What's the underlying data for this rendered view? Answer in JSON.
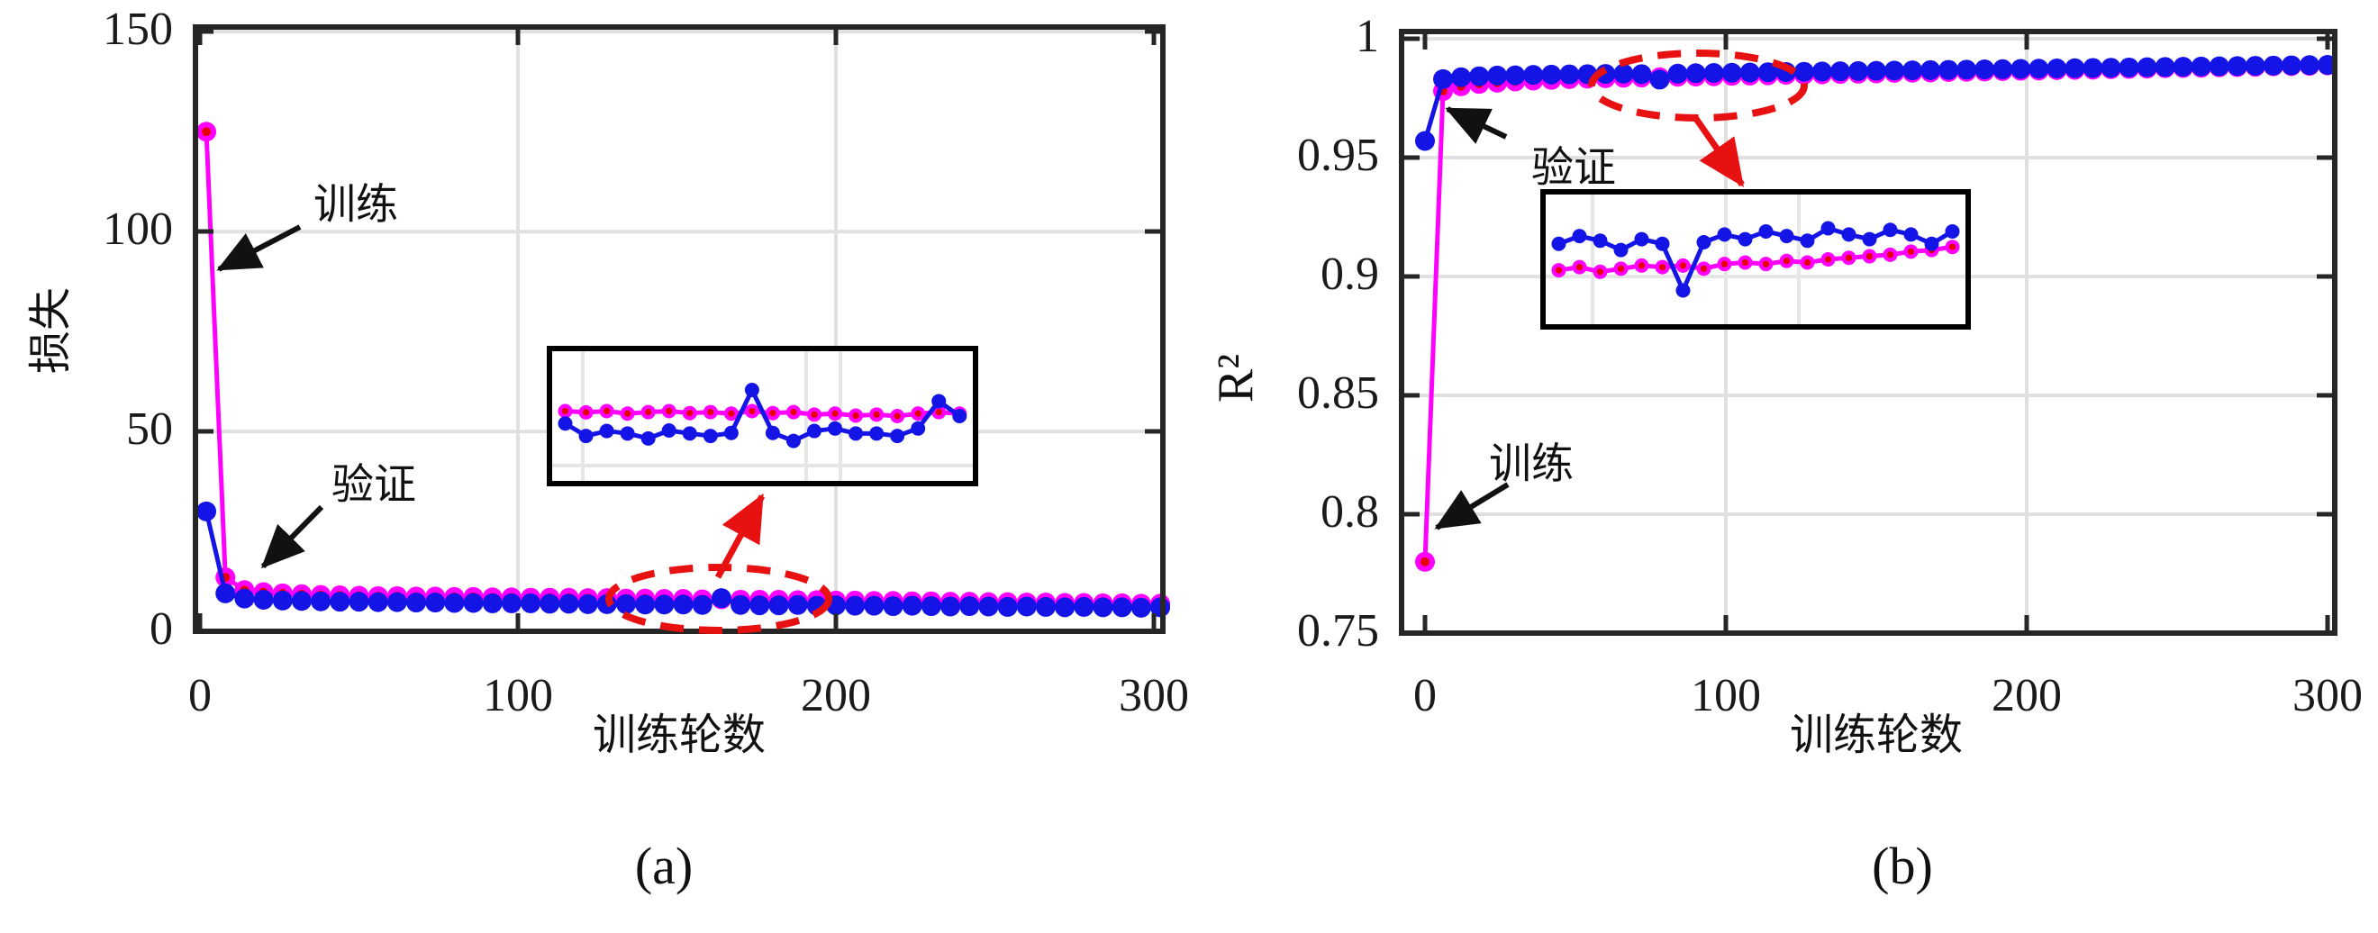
{
  "figure": {
    "captions": {
      "a": "(a)",
      "b": "(b)"
    },
    "colors": {
      "training_line": "#FF00FF",
      "training_marker_core": "#E60000",
      "validation": "#1414E6",
      "annotation_red": "#E81111",
      "annotation_black": "#111111",
      "grid": "#E0E0E0",
      "axis": "#262626",
      "inset_grid": "#E6E6E6"
    }
  },
  "chart_data": [
    {
      "id": "a",
      "type": "line",
      "xlabel": "训练轮数",
      "ylabel": "损失",
      "xlim": [
        0,
        300
      ],
      "ylim": [
        0,
        150
      ],
      "x_ticks": [
        0,
        100,
        200,
        300
      ],
      "y_ticks": [
        0,
        50,
        100,
        150
      ],
      "grid": true,
      "legend_position": "none",
      "annotations": [
        {
          "label": "训练"
        },
        {
          "label": "验证"
        }
      ],
      "highlight_region_epochs": [
        128,
        208
      ],
      "series": [
        {
          "name": "训练",
          "role": "training",
          "x": [
            2,
            8,
            14,
            20,
            26,
            32,
            38,
            44,
            50,
            56,
            62,
            68,
            74,
            80,
            86,
            92,
            98,
            104,
            110,
            116,
            122,
            128,
            134,
            140,
            146,
            152,
            158,
            164,
            170,
            176,
            182,
            188,
            194,
            200,
            206,
            212,
            218,
            224,
            230,
            236,
            242,
            248,
            254,
            260,
            266,
            272,
            278,
            284,
            290,
            296,
            302
          ],
          "y": [
            125,
            13.5,
            10.3,
            9.8,
            9.5,
            9.3,
            9.1,
            9.0,
            8.9,
            8.8,
            8.8,
            8.7,
            8.7,
            8.6,
            8.6,
            8.5,
            8.5,
            8.4,
            8.4,
            8.4,
            8.3,
            8.3,
            8.2,
            8.2,
            8.1,
            8.1,
            8.0,
            8.0,
            7.9,
            7.9,
            7.9,
            7.8,
            7.8,
            7.7,
            7.7,
            7.6,
            7.6,
            7.5,
            7.5,
            7.4,
            7.4,
            7.3,
            7.3,
            7.2,
            7.2,
            7.1,
            7.1,
            7.0,
            7.0,
            6.9,
            6.9
          ]
        },
        {
          "name": "验证",
          "role": "validation",
          "x": [
            2,
            8,
            14,
            20,
            26,
            32,
            38,
            44,
            50,
            56,
            62,
            68,
            74,
            80,
            86,
            92,
            98,
            104,
            110,
            116,
            122,
            128,
            134,
            140,
            146,
            152,
            158,
            164,
            170,
            176,
            182,
            188,
            194,
            200,
            206,
            212,
            218,
            224,
            230,
            236,
            242,
            248,
            254,
            260,
            266,
            272,
            278,
            284,
            290,
            296,
            302
          ],
          "y": [
            30,
            9.5,
            8.2,
            7.9,
            7.7,
            7.6,
            7.5,
            7.4,
            7.4,
            7.3,
            7.3,
            7.2,
            7.2,
            7.1,
            7.1,
            7.0,
            7.0,
            7.0,
            6.9,
            6.9,
            6.8,
            6.8,
            6.8,
            6.7,
            6.7,
            6.7,
            6.6,
            8.3,
            6.6,
            6.5,
            6.5,
            6.6,
            6.4,
            6.5,
            6.4,
            6.4,
            6.3,
            6.4,
            6.3,
            6.2,
            6.3,
            6.2,
            6.1,
            6.2,
            6.1,
            6.0,
            6.1,
            6.0,
            6.0,
            5.9,
            6.0
          ]
        }
      ],
      "inset": {
        "xlim": [
          128,
          208
        ],
        "ylim": [
          5,
          10
        ],
        "series": [
          {
            "name": "训练",
            "role": "training",
            "x": [
              130,
              134,
              138,
              142,
              146,
              150,
              154,
              158,
              162,
              166,
              170,
              174,
              178,
              182,
              186,
              190,
              194,
              198,
              202,
              206
            ],
            "y": [
              7.7,
              7.65,
              7.7,
              7.6,
              7.66,
              7.7,
              7.62,
              7.66,
              7.6,
              7.7,
              7.62,
              7.66,
              7.56,
              7.6,
              7.52,
              7.56,
              7.5,
              7.6,
              7.66,
              7.6
            ]
          },
          {
            "name": "验证",
            "role": "validation",
            "x": [
              130,
              134,
              138,
              142,
              146,
              150,
              154,
              158,
              162,
              166,
              170,
              174,
              178,
              182,
              186,
              190,
              194,
              198,
              202,
              206
            ],
            "y": [
              7.2,
              6.7,
              6.9,
              6.8,
              6.6,
              6.92,
              6.8,
              6.7,
              6.82,
              8.55,
              6.82,
              6.5,
              6.9,
              7.0,
              6.8,
              6.8,
              6.7,
              7.0,
              8.1,
              7.5
            ]
          }
        ]
      }
    },
    {
      "id": "b",
      "type": "line",
      "xlabel": "训练轮数",
      "ylabel": "R²",
      "xlim": [
        0,
        300
      ],
      "ylim": [
        0.75,
        1.0
      ],
      "x_ticks": [
        0,
        100,
        200,
        300
      ],
      "y_ticks": [
        0.75,
        0.8,
        0.85,
        0.9,
        0.95,
        1
      ],
      "grid": true,
      "legend_position": "none",
      "annotations": [
        {
          "label": "训练"
        },
        {
          "label": "验证"
        }
      ],
      "highlight_region_epochs": [
        55,
        125
      ],
      "series": [
        {
          "name": "训练",
          "role": "training",
          "x": [
            0,
            6,
            12,
            18,
            24,
            30,
            36,
            42,
            48,
            54,
            60,
            66,
            72,
            78,
            84,
            90,
            96,
            102,
            108,
            114,
            120,
            126,
            132,
            138,
            144,
            150,
            156,
            162,
            168,
            174,
            180,
            186,
            192,
            198,
            204,
            210,
            216,
            222,
            228,
            234,
            240,
            246,
            252,
            258,
            264,
            270,
            276,
            282,
            288,
            294,
            300
          ],
          "y": [
            0.78,
            0.978,
            0.98,
            0.981,
            0.9815,
            0.982,
            0.9824,
            0.9827,
            0.983,
            0.9832,
            0.9834,
            0.9836,
            0.9837,
            0.9838,
            0.984,
            0.9841,
            0.9842,
            0.9844,
            0.9845,
            0.9846,
            0.9848,
            0.9849,
            0.985,
            0.9852,
            0.9853,
            0.9854,
            0.9856,
            0.9857,
            0.9858,
            0.986,
            0.9861,
            0.9862,
            0.9864,
            0.9865,
            0.9866,
            0.9868,
            0.9869,
            0.987,
            0.9872,
            0.9873,
            0.9874,
            0.9876,
            0.9877,
            0.9878,
            0.988,
            0.9881,
            0.9882,
            0.9884,
            0.9885,
            0.9886,
            0.9888
          ]
        },
        {
          "name": "验证",
          "role": "validation",
          "x": [
            0,
            6,
            12,
            18,
            24,
            30,
            36,
            42,
            48,
            54,
            60,
            66,
            72,
            78,
            84,
            90,
            96,
            102,
            108,
            114,
            120,
            126,
            132,
            138,
            144,
            150,
            156,
            162,
            168,
            174,
            180,
            186,
            192,
            198,
            204,
            210,
            216,
            222,
            228,
            234,
            240,
            246,
            252,
            258,
            264,
            270,
            276,
            282,
            288,
            294,
            300
          ],
          "y": [
            0.957,
            0.983,
            0.9838,
            0.9842,
            0.9845,
            0.9846,
            0.9848,
            0.9849,
            0.985,
            0.9851,
            0.9852,
            0.9853,
            0.9851,
            0.9828,
            0.9853,
            0.9855,
            0.9856,
            0.9857,
            0.9858,
            0.9859,
            0.986,
            0.9861,
            0.9862,
            0.9863,
            0.9864,
            0.9865,
            0.9866,
            0.9867,
            0.9868,
            0.9869,
            0.987,
            0.9871,
            0.9872,
            0.9873,
            0.9874,
            0.9875,
            0.9876,
            0.9877,
            0.9878,
            0.9879,
            0.988,
            0.9881,
            0.9882,
            0.9883,
            0.9884,
            0.9885,
            0.9886,
            0.9887,
            0.9888,
            0.9889,
            0.989
          ]
        }
      ],
      "inset": {
        "xlim": [
          45,
          125
        ],
        "ylim": [
          0.98,
          0.988
        ],
        "series": [
          {
            "name": "训练",
            "role": "training",
            "x": [
              47,
              51,
              55,
              59,
              63,
              67,
              71,
              75,
              79,
              83,
              87,
              91,
              95,
              99,
              103,
              107,
              111,
              115,
              119,
              123
            ],
            "y": [
              0.9833,
              0.9835,
              0.9832,
              0.9834,
              0.9836,
              0.9835,
              0.9836,
              0.9834,
              0.9837,
              0.9838,
              0.9837,
              0.9839,
              0.9838,
              0.984,
              0.9841,
              0.9842,
              0.9843,
              0.9845,
              0.9846,
              0.9848
            ]
          },
          {
            "name": "验证",
            "role": "validation",
            "x": [
              47,
              51,
              55,
              59,
              63,
              67,
              71,
              75,
              79,
              83,
              87,
              91,
              95,
              99,
              103,
              107,
              111,
              115,
              119,
              123
            ],
            "y": [
              0.985,
              0.9855,
              0.9852,
              0.9846,
              0.9853,
              0.985,
              0.982,
              0.9851,
              0.9856,
              0.9853,
              0.9858,
              0.9855,
              0.9852,
              0.986,
              0.9856,
              0.9853,
              0.9859,
              0.9856,
              0.985,
              0.9858
            ]
          }
        ]
      }
    }
  ]
}
